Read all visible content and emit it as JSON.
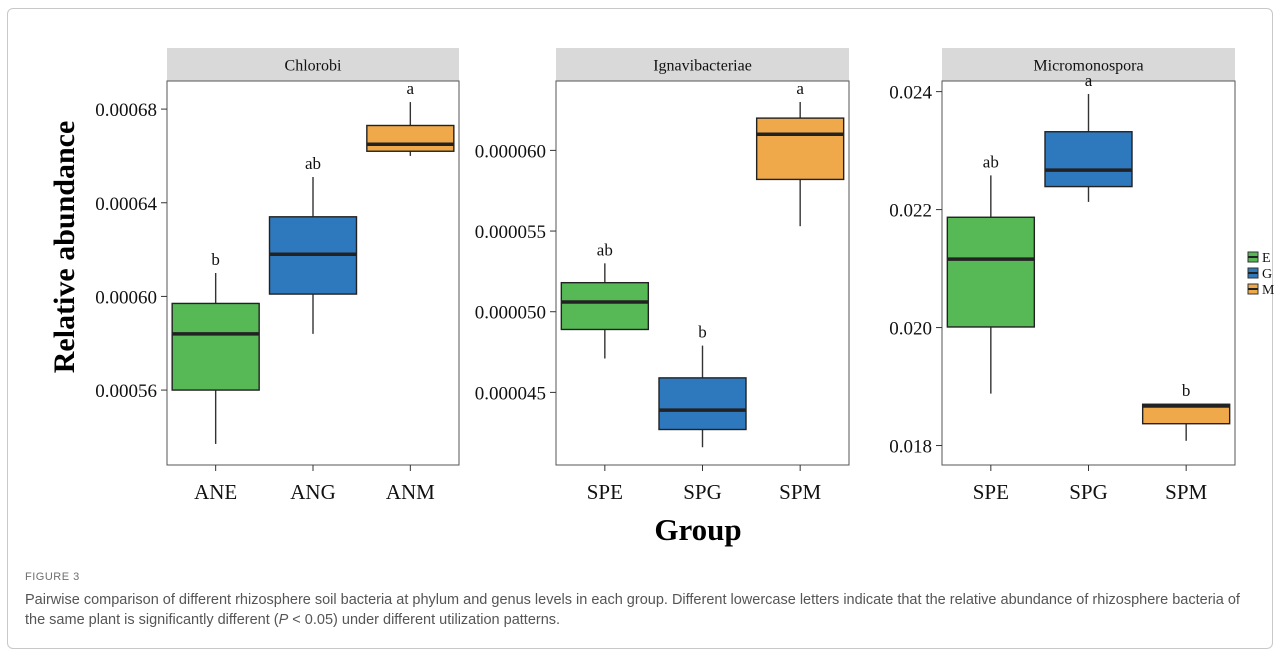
{
  "figure": {
    "label": "FIGURE 3",
    "caption_before_italic": "Pairwise comparison of different rhizosphere soil bacteria at phylum and genus levels in each group. Different lowercase letters indicate that the relative abundance of rhizosphere bacteria of the same plant is significantly different (",
    "caption_italic": "P",
    "caption_after_italic": " < 0.05) under different utilization patterns."
  },
  "axes": {
    "ylabel": "Relative abundance",
    "xlabel": "Group"
  },
  "legend": {
    "position": "right",
    "items": [
      {
        "label": "E",
        "color": "#57b956"
      },
      {
        "label": "G",
        "color": "#2e78bd"
      },
      {
        "label": "M",
        "color": "#f0a94a"
      }
    ]
  },
  "chart_data": [
    {
      "type": "box",
      "title": "Chlorobi",
      "categories": [
        "ANE",
        "ANG",
        "ANM"
      ],
      "ylim": [
        0.000528,
        0.000692
      ],
      "ticks": [
        0.00056,
        0.0006,
        0.00064,
        0.00068
      ],
      "tick_labels": [
        "0.00056",
        "0.00060",
        "0.00064",
        "0.00068"
      ],
      "boxes": [
        {
          "group": "E",
          "min": 0.000537,
          "q1": 0.00056,
          "median": 0.000584,
          "q3": 0.000597,
          "max": 0.00061,
          "letter": "b"
        },
        {
          "group": "G",
          "min": 0.000584,
          "q1": 0.000601,
          "median": 0.000618,
          "q3": 0.000634,
          "max": 0.000651,
          "letter": "ab"
        },
        {
          "group": "M",
          "min": 0.00066,
          "q1": 0.000662,
          "median": 0.000665,
          "q3": 0.000673,
          "max": 0.000683,
          "letter": "a"
        }
      ]
    },
    {
      "type": "box",
      "title": "Ignavibacteriae",
      "categories": [
        "SPE",
        "SPG",
        "SPM"
      ],
      "ylim": [
        4.05e-05,
        6.43e-05
      ],
      "ticks": [
        4.5e-05,
        5e-05,
        5.5e-05,
        6e-05
      ],
      "tick_labels": [
        "0.000045",
        "0.000050",
        "0.000055",
        "0.000060"
      ],
      "boxes": [
        {
          "group": "E",
          "min": 4.71e-05,
          "q1": 4.89e-05,
          "median": 5.06e-05,
          "q3": 5.18e-05,
          "max": 5.3e-05,
          "letter": "ab"
        },
        {
          "group": "G",
          "min": 4.16e-05,
          "q1": 4.27e-05,
          "median": 4.39e-05,
          "q3": 4.59e-05,
          "max": 4.79e-05,
          "letter": "b"
        },
        {
          "group": "M",
          "min": 5.53e-05,
          "q1": 5.82e-05,
          "median": 6.1e-05,
          "q3": 6.2e-05,
          "max": 6.3e-05,
          "letter": "a"
        }
      ]
    },
    {
      "type": "box",
      "title": "Micromonospora",
      "categories": [
        "SPE",
        "SPG",
        "SPM"
      ],
      "ylim": [
        0.01767,
        0.02418
      ],
      "ticks": [
        0.018,
        0.02,
        0.022,
        0.024
      ],
      "tick_labels": [
        "0.018",
        "0.020",
        "0.022",
        "0.024"
      ],
      "boxes": [
        {
          "group": "E",
          "min": 0.01888,
          "q1": 0.02001,
          "median": 0.02116,
          "q3": 0.02187,
          "max": 0.02258,
          "letter": "ab"
        },
        {
          "group": "G",
          "min": 0.02213,
          "q1": 0.02239,
          "median": 0.02267,
          "q3": 0.02332,
          "max": 0.02396,
          "letter": "a"
        },
        {
          "group": "M",
          "min": 0.01808,
          "q1": 0.01837,
          "median": 0.01867,
          "q3": 0.0187,
          "max": 0.0187,
          "letter": "b"
        }
      ]
    }
  ]
}
